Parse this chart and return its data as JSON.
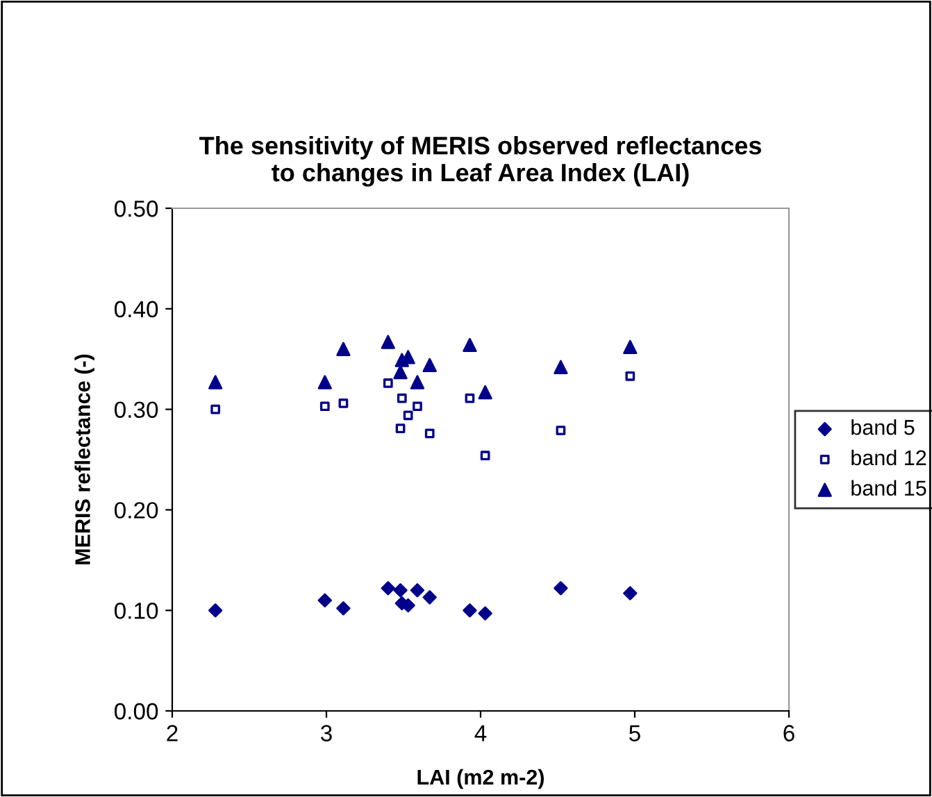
{
  "chart_data": {
    "type": "scatter",
    "title": "The sensitivity of MERIS observed reflectances\nto changes in Leaf Area Index (LAI)",
    "xlabel": "LAI (m2 m-2)",
    "ylabel": "MERIS reflectance (-)",
    "x": [
      2.28,
      2.99,
      3.11,
      3.4,
      3.48,
      3.49,
      3.53,
      3.59,
      3.67,
      3.93,
      4.03,
      4.52,
      4.97
    ],
    "series": [
      {
        "name": "band 5",
        "color": "#00008b",
        "marker": "diamond",
        "values": [
          0.1,
          0.11,
          0.102,
          0.122,
          0.12,
          0.107,
          0.105,
          0.12,
          0.113,
          0.1,
          0.097,
          0.122,
          0.117
        ]
      },
      {
        "name": "band 12",
        "color": "#00008b",
        "marker": "square",
        "values": [
          0.3,
          0.303,
          0.306,
          0.326,
          0.281,
          0.311,
          0.294,
          0.303,
          0.276,
          0.311,
          0.254,
          0.279,
          0.333
        ]
      },
      {
        "name": "band 15",
        "color": "#00008b",
        "marker": "triangle",
        "values": [
          0.327,
          0.327,
          0.36,
          0.367,
          0.337,
          0.349,
          0.352,
          0.327,
          0.344,
          0.364,
          0.317,
          0.342,
          0.362
        ]
      }
    ],
    "xlim": [
      2,
      6
    ],
    "xticks": [
      2,
      3,
      4,
      5,
      6
    ],
    "ylim": [
      0,
      0.5
    ],
    "yticks": [
      {
        "value": 0,
        "label": "0.00"
      },
      {
        "value": 0.1,
        "label": "0.10"
      },
      {
        "value": 0.2,
        "label": "0.20"
      },
      {
        "value": 0.3,
        "label": "0.30"
      },
      {
        "value": 0.4,
        "label": "0.40"
      },
      {
        "value": 0.5,
        "label": "0.50"
      }
    ],
    "grid": false,
    "legend": "right"
  }
}
